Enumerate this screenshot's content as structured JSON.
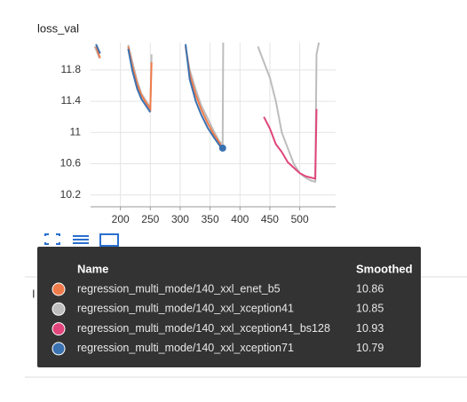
{
  "chart_data": {
    "type": "line",
    "title": "loss_val",
    "xlim": [
      150,
      560
    ],
    "ylim": [
      10.05,
      12.15
    ],
    "xticks": [
      200,
      250,
      300,
      350,
      400,
      450,
      500
    ],
    "yticks": [
      10.2,
      10.6,
      11,
      11.4,
      11.8
    ],
    "grid": true,
    "series": [
      {
        "name": "regression_multi_mode/140_xxl_enet_b5",
        "color": "#f07b4a",
        "x": [
          159,
          166,
          170,
          213,
          220,
          228,
          235,
          243,
          250,
          252,
          254,
          309,
          316,
          326,
          335,
          346,
          356,
          368,
          371
        ],
        "values": [
          12.1,
          11.95,
          null,
          12.1,
          11.85,
          11.62,
          11.48,
          11.38,
          11.3,
          11.9,
          null,
          12.1,
          11.75,
          11.48,
          11.3,
          11.12,
          10.98,
          10.84,
          10.82
        ]
      },
      {
        "name": "regression_multi_mode/140_xxl_xception41",
        "color": "#bdbdbd",
        "x": [
          157,
          165,
          172,
          213,
          220,
          228,
          235,
          243,
          250,
          252,
          255,
          309,
          316,
          326,
          335,
          346,
          356,
          366,
          371,
          372,
          375,
          430,
          440,
          450,
          460,
          470,
          480,
          490,
          500,
          510,
          520,
          526,
          528,
          532
        ],
        "values": [
          12.1,
          11.95,
          null,
          12.12,
          11.9,
          11.66,
          11.5,
          11.4,
          11.32,
          12.0,
          null,
          12.1,
          11.8,
          11.55,
          11.35,
          11.18,
          11.02,
          10.88,
          10.86,
          12.15,
          null,
          12.1,
          11.9,
          11.7,
          11.4,
          11.0,
          10.8,
          10.6,
          10.48,
          10.42,
          10.38,
          10.37,
          12.0,
          12.15
        ]
      },
      {
        "name": "regression_multi_mode/140_xxl_xception41_bs128",
        "color": "#e0457b",
        "x": [
          440,
          450,
          460,
          470,
          480,
          490,
          500,
          510,
          520,
          526,
          528
        ],
        "values": [
          11.2,
          11.05,
          10.85,
          10.75,
          10.62,
          10.55,
          10.48,
          10.44,
          10.42,
          10.41,
          11.3
        ]
      },
      {
        "name": "regression_multi_mode/140_xxl_xception71",
        "color": "#3b72b0",
        "x": [
          159,
          166,
          170,
          213,
          220,
          228,
          235,
          243,
          250,
          254,
          309,
          316,
          326,
          335,
          346,
          356,
          368,
          371
        ],
        "values": [
          12.13,
          12.01,
          null,
          12.07,
          11.79,
          11.56,
          11.43,
          11.34,
          11.26,
          null,
          12.13,
          11.68,
          11.4,
          11.23,
          11.06,
          10.94,
          10.81,
          10.8
        ]
      }
    ]
  },
  "tooltip": {
    "headers": [
      "Name",
      "Smoothed"
    ],
    "smoothed": [
      10.86,
      10.85,
      10.93,
      10.79
    ]
  }
}
